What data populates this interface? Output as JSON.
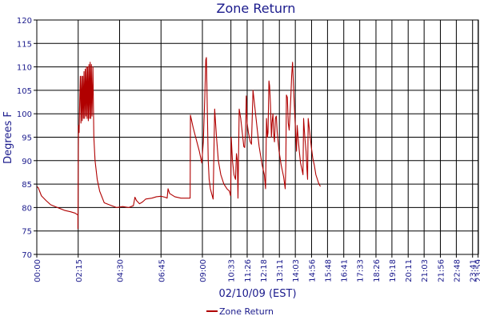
{
  "chart_data": {
    "type": "line",
    "title": "Zone Return",
    "xlabel": "02/10/09 (EST)",
    "ylabel": "Degrees F",
    "ylim": [
      70,
      120
    ],
    "yticks": [
      70,
      75,
      80,
      85,
      90,
      95,
      100,
      105,
      110,
      115,
      120
    ],
    "xlim": [
      0,
      1440
    ],
    "x_tick_labels": [
      {
        "t": 0,
        "label": "00:00"
      },
      {
        "t": 135,
        "label": "02:15"
      },
      {
        "t": 270,
        "label": "04:30"
      },
      {
        "t": 405,
        "label": "06:45"
      },
      {
        "t": 540,
        "label": "09:00"
      },
      {
        "t": 633,
        "label": "10:33"
      },
      {
        "t": 686,
        "label": "11:26"
      },
      {
        "t": 738,
        "label": "12:18"
      },
      {
        "t": 791,
        "label": "13:11"
      },
      {
        "t": 843,
        "label": "14:03"
      },
      {
        "t": 896,
        "label": "14:56"
      },
      {
        "t": 948,
        "label": "15:48"
      },
      {
        "t": 1001,
        "label": "16:41"
      },
      {
        "t": 1053,
        "label": "17:33"
      },
      {
        "t": 1106,
        "label": "18:26"
      },
      {
        "t": 1158,
        "label": "19:18"
      },
      {
        "t": 1211,
        "label": "20:11"
      },
      {
        "t": 1263,
        "label": "21:03"
      },
      {
        "t": 1316,
        "label": "21:56"
      },
      {
        "t": 1368,
        "label": "22:48"
      },
      {
        "t": 1421,
        "label": "23:41"
      },
      {
        "t": 1439,
        "label": "23:59"
      }
    ],
    "grid": true,
    "legend_position": "bottom-center",
    "series": [
      {
        "name": "Zone Return",
        "color": "#b00000",
        "points": [
          [
            0,
            84.5
          ],
          [
            5,
            84.2
          ],
          [
            15,
            82.5
          ],
          [
            30,
            81.5
          ],
          [
            45,
            80.6
          ],
          [
            60,
            80.2
          ],
          [
            75,
            79.8
          ],
          [
            90,
            79.4
          ],
          [
            110,
            79.1
          ],
          [
            125,
            78.8
          ],
          [
            134,
            78.4
          ],
          [
            134,
            75.5
          ],
          [
            136,
            97.5
          ],
          [
            138,
            96.0
          ],
          [
            140,
            103.0
          ],
          [
            142,
            108.0
          ],
          [
            144,
            98.0
          ],
          [
            146,
            108.0
          ],
          [
            148,
            98.5
          ],
          [
            150,
            108.0
          ],
          [
            152,
            99.0
          ],
          [
            154,
            109.0
          ],
          [
            156,
            99.0
          ],
          [
            158,
            109.5
          ],
          [
            160,
            99.5
          ],
          [
            162,
            110.0
          ],
          [
            164,
            99.0
          ],
          [
            166,
            110.0
          ],
          [
            168,
            98.5
          ],
          [
            170,
            110.5
          ],
          [
            172,
            99.0
          ],
          [
            174,
            111.0
          ],
          [
            176,
            99.0
          ],
          [
            178,
            110.5
          ],
          [
            180,
            99.5
          ],
          [
            183,
            110.0
          ],
          [
            186,
            95.0
          ],
          [
            190,
            90.0
          ],
          [
            197,
            86.0
          ],
          [
            205,
            83.5
          ],
          [
            220,
            81.0
          ],
          [
            240,
            80.5
          ],
          [
            260,
            80.0
          ],
          [
            280,
            80.2
          ],
          [
            300,
            80.0
          ],
          [
            315,
            80.4
          ],
          [
            320,
            82.2
          ],
          [
            325,
            81.5
          ],
          [
            335,
            80.8
          ],
          [
            345,
            81.2
          ],
          [
            355,
            81.8
          ],
          [
            375,
            82.0
          ],
          [
            390,
            82.3
          ],
          [
            405,
            82.4
          ],
          [
            418,
            82.2
          ],
          [
            425,
            82.0
          ],
          [
            428,
            84.0
          ],
          [
            433,
            83.0
          ],
          [
            450,
            82.3
          ],
          [
            470,
            82.0
          ],
          [
            490,
            82.0
          ],
          [
            500,
            82.0
          ],
          [
            501,
            99.7
          ],
          [
            510,
            97.0
          ],
          [
            520,
            94.5
          ],
          [
            530,
            92.0
          ],
          [
            538,
            89.5
          ],
          [
            543,
            94.0
          ],
          [
            548,
            104.0
          ],
          [
            551,
            111.5
          ],
          [
            553,
            112.0
          ],
          [
            556,
            101.0
          ],
          [
            559,
            90.0
          ],
          [
            562,
            86.0
          ],
          [
            566,
            84.0
          ],
          [
            570,
            83.0
          ],
          [
            575,
            81.8
          ],
          [
            580,
            101.0
          ],
          [
            586,
            95.0
          ],
          [
            592,
            90.0
          ],
          [
            600,
            87.0
          ],
          [
            610,
            85.0
          ],
          [
            620,
            84.0
          ],
          [
            628,
            83.5
          ],
          [
            632,
            82.5
          ],
          [
            634,
            95.0
          ],
          [
            638,
            90.0
          ],
          [
            643,
            87.0
          ],
          [
            648,
            86.0
          ],
          [
            651,
            91.5
          ],
          [
            654,
            90.0
          ],
          [
            656,
            82.0
          ],
          [
            660,
            101.0
          ],
          [
            665,
            99.0
          ],
          [
            670,
            96.0
          ],
          [
            675,
            93.0
          ],
          [
            678,
            92.8
          ],
          [
            681,
            97.0
          ],
          [
            683,
            103.8
          ],
          [
            686,
            98.0
          ],
          [
            690,
            96.0
          ],
          [
            696,
            94.0
          ],
          [
            700,
            93.5
          ],
          [
            705,
            105.0
          ],
          [
            710,
            102.0
          ],
          [
            715,
            99.0
          ],
          [
            720,
            96.0
          ],
          [
            725,
            93.0
          ],
          [
            730,
            91.0
          ],
          [
            735,
            89.0
          ],
          [
            742,
            87.0
          ],
          [
            746,
            84.0
          ],
          [
            749,
            99.0
          ],
          [
            752,
            95.0
          ],
          [
            754,
            96.0
          ],
          [
            757,
            107.0
          ],
          [
            759,
            106.0
          ],
          [
            762,
            102.0
          ],
          [
            765,
            95.0
          ],
          [
            767,
            98.0
          ],
          [
            770,
            100.0
          ],
          [
            772,
            96.0
          ],
          [
            775,
            94.0
          ],
          [
            778,
            99.0
          ],
          [
            781,
            99.5
          ],
          [
            784,
            96.0
          ],
          [
            790,
            92.0
          ],
          [
            797,
            89.0
          ],
          [
            805,
            86.5
          ],
          [
            810,
            84.0
          ],
          [
            812,
            89.0
          ],
          [
            814,
            104.0
          ],
          [
            817,
            103.5
          ],
          [
            820,
            98.0
          ],
          [
            823,
            96.5
          ],
          [
            828,
            103.0
          ],
          [
            831,
            108.0
          ],
          [
            834,
            111.0
          ],
          [
            837,
            106.0
          ],
          [
            841,
            100.0
          ],
          [
            844,
            96.0
          ],
          [
            847,
            92.0
          ],
          [
            849,
            97.5
          ],
          [
            852,
            95.0
          ],
          [
            856,
            92.0
          ],
          [
            860,
            89.5
          ],
          [
            865,
            88.0
          ],
          [
            868,
            87.0
          ],
          [
            870,
            99.0
          ],
          [
            874,
            95.0
          ],
          [
            878,
            92.0
          ],
          [
            881,
            88.0
          ],
          [
            883,
            86.0
          ],
          [
            885,
            99.0
          ],
          [
            890,
            96.0
          ],
          [
            895,
            93.0
          ],
          [
            900,
            90.5
          ],
          [
            905,
            89.0
          ],
          [
            910,
            87.0
          ],
          [
            915,
            86.0
          ],
          [
            920,
            85.0
          ],
          [
            925,
            84.5
          ]
        ]
      }
    ]
  },
  "legend": {
    "label": "Zone Return"
  }
}
